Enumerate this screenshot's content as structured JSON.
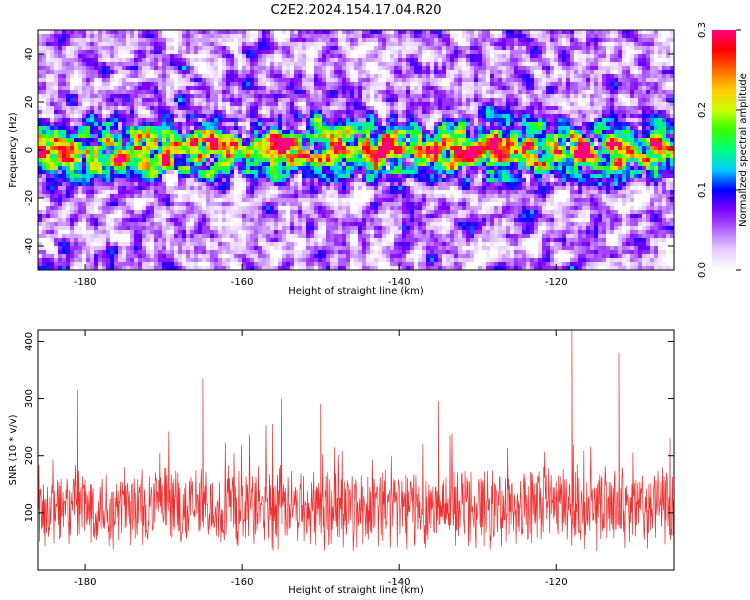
{
  "title": "C2E2.2024.154.17.04.R20",
  "chart_data": [
    {
      "type": "heatmap",
      "xlabel": "Height of straight line (km)",
      "ylabel": "Frequency (Hz)",
      "xlim": [
        -186,
        -105
      ],
      "ylim": [
        -50,
        50
      ],
      "xticks": [
        "-180",
        "-160",
        "-140",
        "-120"
      ],
      "xtick_values": [
        -180,
        -160,
        -140,
        -120
      ],
      "yticks": [
        "-40",
        "-20",
        "0",
        "20",
        "40"
      ],
      "ytick_values": [
        -40,
        -20,
        0,
        20,
        40
      ],
      "colorbar": {
        "label": "Normalized spectral amplitude",
        "range": [
          0.0,
          0.3
        ],
        "ticks": [
          "0.0",
          "0.1",
          "0.2",
          "0.3"
        ],
        "tick_values": [
          0.0,
          0.1,
          0.2,
          0.3
        ],
        "colormap": [
          "#ffffff",
          "#e6ccff",
          "#b366ff",
          "#8000ff",
          "#0000ff",
          "#00ccff",
          "#00ff80",
          "#33ff00",
          "#ccff00",
          "#ffcc00",
          "#ff6600",
          "#ff0000",
          "#ff0080"
        ]
      },
      "description_bands": {
        "signal_band_center_hz": 0,
        "signal_band_halfwidth_hz": 10,
        "peak_value": 0.3,
        "background_value": 0.03
      }
    },
    {
      "type": "line",
      "xlabel": "Height of straight line (km)",
      "ylabel": "SNR (10 * v/v)",
      "xlim": [
        -186,
        -105
      ],
      "ylim": [
        0,
        420
      ],
      "xticks": [
        "-180",
        "-160",
        "-140",
        "-120"
      ],
      "xtick_values": [
        -180,
        -160,
        -140,
        -120
      ],
      "yticks": [
        "100",
        "200",
        "300",
        "400"
      ],
      "ytick_values": [
        100,
        200,
        300,
        400
      ],
      "series": [
        {
          "color": "#f03030",
          "mean": 110,
          "spread": 60,
          "spikes": [
            [
              -181,
              315
            ],
            [
              -165,
              335
            ],
            [
              -118,
              420
            ],
            [
              -112,
              380
            ],
            [
              -135,
              295
            ],
            [
              -155,
              300
            ],
            [
              -150,
              290
            ]
          ]
        }
      ]
    }
  ]
}
